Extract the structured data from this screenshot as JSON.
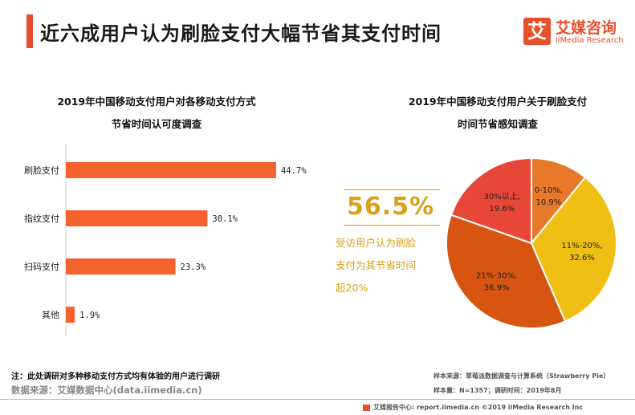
{
  "header": {
    "title": "近六成用户认为刷脸支付大幅节省其支付时间",
    "logo_cn": "艾媒咨询",
    "logo_en": "iiMedia Research",
    "logo_mark": "艾"
  },
  "colors": {
    "accent": "#e8502b",
    "bar": "#f4622e",
    "callout": "#d9a11a"
  },
  "chart_data": [
    {
      "type": "bar",
      "orientation": "horizontal",
      "title_lines": [
        "2019年中国移动支付用户对各移动支付方式",
        "节省时间认可度调查"
      ],
      "categories": [
        "刷脸支付",
        "指纹支付",
        "扫码支付",
        "其他"
      ],
      "values": [
        44.7,
        30.1,
        23.3,
        1.9
      ],
      "value_labels": [
        "44.7%",
        "30.1%",
        "23.3%",
        "1.9%"
      ],
      "xlim": [
        0,
        50
      ],
      "grid": false
    },
    {
      "type": "pie",
      "title_lines": [
        "2019年中国移动支付用户关于刷脸支付",
        "时间节省感知调查"
      ],
      "slices": [
        {
          "label": "0-10%,",
          "value_label": "10.9%",
          "value": 10.9,
          "color": "#e8792a"
        },
        {
          "label": "11%-20%,",
          "value_label": "32.6%",
          "value": 32.6,
          "color": "#f0bf13"
        },
        {
          "label": "21%-30%,",
          "value_label": "36.9%",
          "value": 36.9,
          "color": "#d75511"
        },
        {
          "label": "30%以上,",
          "value_label": "19.6%",
          "value": 19.6,
          "color": "#e84737"
        }
      ],
      "callout": {
        "value": "56.5%",
        "text_lines": [
          "受访用户认为刷脸",
          "支付为其节省时间",
          "超20%"
        ]
      }
    }
  ],
  "notes": {
    "footnote": "注：此处调研对多种移动支付方式均有体验的用户进行调研",
    "datasource": "数据来源：艾媒数据中心(data.iimedia.cn)",
    "sample_source": "样本来源：草莓派数据调查与计算系统（Strawberry Pie）",
    "sample_size": "样本量：N=1357；调研时间：2019年8月",
    "footer": "艾媒报告中心: report.iimedia.cn  ©2019  iiMedia Research  Inc"
  }
}
